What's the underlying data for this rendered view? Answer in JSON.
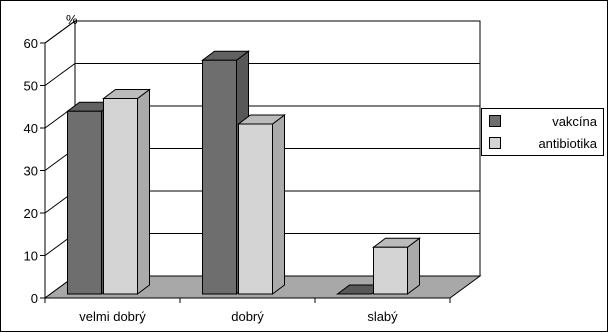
{
  "chart_data": {
    "type": "bar",
    "ylabel": "%",
    "ylim": [
      0,
      60
    ],
    "ytick_step": 10,
    "grid": true,
    "legend_position": "right",
    "categories": [
      "velmi dobrý",
      "dobrý",
      "slabý"
    ],
    "series": [
      {
        "name": "vakcína",
        "values": [
          43,
          55,
          0
        ],
        "color": "#6e6e6e"
      },
      {
        "name": "antibiotika",
        "values": [
          46,
          40,
          11
        ],
        "color": "#d4d4d4"
      }
    ]
  },
  "colors": {
    "frame": "#000000",
    "floor": "#a8a8a8",
    "wall": "#ffffff"
  }
}
